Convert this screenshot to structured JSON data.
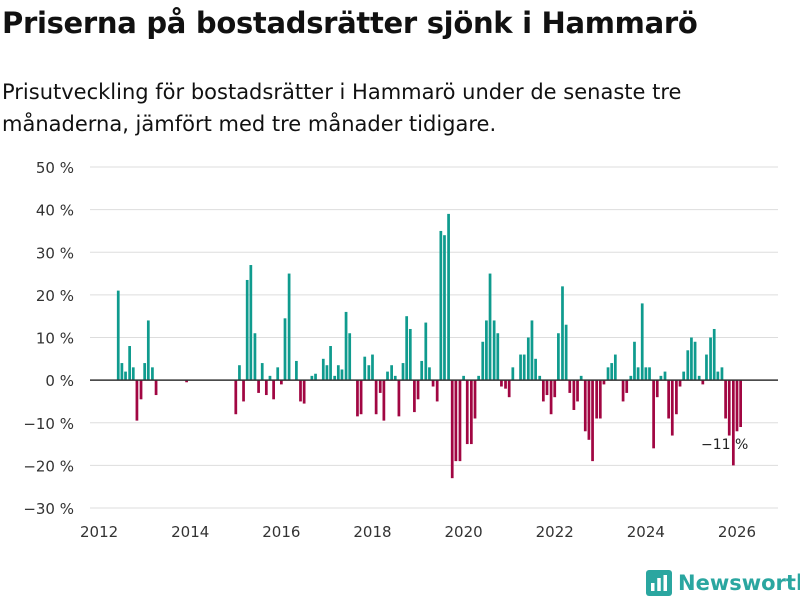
{
  "header": {
    "title": "Priserna på bostadsrätter sjönk i Hammarö",
    "subtitle": "Prisutveckling för bostadsrätter i Hammarö under de senaste tre månaderna, jämfört med tre månader tidigare."
  },
  "brand": {
    "name": "Newsworthy",
    "color": "#2aa6a0",
    "icon": "bar-chart-logo-icon"
  },
  "colors": {
    "positive": "#0f9b8e",
    "negative": "#a10642",
    "grid": "#dddddd",
    "zero_line": "#333333"
  },
  "chart_data": {
    "type": "bar",
    "title": "Priserna på bostadsrätter sjönk i Hammarö",
    "xlabel": "",
    "ylabel": "",
    "ylim": [
      -30,
      50
    ],
    "xlim": [
      2011.8,
      2026.9
    ],
    "yticks": [
      -30,
      -20,
      -10,
      0,
      10,
      20,
      30,
      40,
      50
    ],
    "ytick_labels": [
      "−30 %",
      "−20 %",
      "−10 %",
      "0 %",
      "10 %",
      "20 %",
      "30 %",
      "40 %",
      "50 %"
    ],
    "xticks": [
      2012,
      2014,
      2016,
      2018,
      2020,
      2022,
      2024,
      2026
    ],
    "xtick_labels": [
      "2012",
      "2014",
      "2016",
      "2018",
      "2020",
      "2022",
      "2024",
      "2026"
    ],
    "grid": true,
    "annotation": {
      "text": "−11 %",
      "x": 2026.08,
      "y": -11
    },
    "series": [
      {
        "name": "Prisutveckling",
        "x": [
          2012.42,
          2012.5,
          2012.58,
          2012.67,
          2012.75,
          2012.83,
          2012.92,
          2013.0,
          2013.08,
          2013.17,
          2013.25,
          2013.33,
          2013.92,
          2015.0,
          2015.08,
          2015.17,
          2015.25,
          2015.33,
          2015.42,
          2015.5,
          2015.58,
          2015.67,
          2015.75,
          2015.83,
          2015.92,
          2016.0,
          2016.08,
          2016.17,
          2016.25,
          2016.33,
          2016.42,
          2016.5,
          2016.58,
          2016.67,
          2016.75,
          2016.83,
          2016.92,
          2017.0,
          2017.08,
          2017.17,
          2017.25,
          2017.33,
          2017.42,
          2017.5,
          2017.58,
          2017.67,
          2017.75,
          2017.83,
          2017.92,
          2018.0,
          2018.08,
          2018.17,
          2018.25,
          2018.33,
          2018.42,
          2018.5,
          2018.58,
          2018.67,
          2018.75,
          2018.83,
          2018.92,
          2019.0,
          2019.08,
          2019.17,
          2019.25,
          2019.33,
          2019.42,
          2019.5,
          2019.58,
          2019.67,
          2019.75,
          2019.83,
          2019.92,
          2020.0,
          2020.08,
          2020.17,
          2020.25,
          2020.33,
          2020.42,
          2020.5,
          2020.58,
          2020.67,
          2020.75,
          2020.83,
          2020.92,
          2021.0,
          2021.08,
          2021.17,
          2021.25,
          2021.33,
          2021.42,
          2021.5,
          2021.58,
          2021.67,
          2021.75,
          2021.83,
          2021.92,
          2022.0,
          2022.08,
          2022.17,
          2022.25,
          2022.33,
          2022.42,
          2022.5,
          2022.58,
          2022.67,
          2022.75,
          2022.83,
          2022.92,
          2023.0,
          2023.08,
          2023.17,
          2023.25,
          2023.33,
          2023.42,
          2023.5,
          2023.58,
          2023.67,
          2023.75,
          2023.83,
          2023.92,
          2024.0,
          2024.08,
          2024.17,
          2024.25,
          2024.33,
          2024.42,
          2024.5,
          2024.58,
          2024.67,
          2024.75,
          2024.83,
          2024.92,
          2025.0,
          2025.08,
          2025.17,
          2025.25,
          2025.33,
          2025.42,
          2025.5,
          2025.58,
          2025.67,
          2025.75,
          2025.83,
          2025.92,
          2026.0,
          2026.08
        ],
        "values": [
          21,
          4,
          2,
          8,
          3,
          -9.5,
          -4.5,
          4,
          14,
          3,
          -3.5,
          0,
          -0.5,
          -8,
          3.5,
          -5,
          23.5,
          27,
          11,
          -3,
          4,
          -3.5,
          1,
          -4.5,
          3,
          -1,
          14.5,
          25,
          0,
          4.5,
          -5,
          -5.5,
          0,
          1,
          1.5,
          0,
          5,
          3.5,
          8,
          1,
          3.5,
          2.5,
          16,
          11,
          0,
          -8.5,
          -8,
          5.5,
          3.5,
          6,
          -8,
          -3,
          -9.5,
          2,
          3.5,
          1,
          -8.5,
          4,
          15,
          12,
          -7.5,
          -4.5,
          4.5,
          13.5,
          3,
          -1.5,
          -5,
          35,
          34,
          39,
          -23,
          -19,
          -19,
          1,
          -15,
          -15,
          -9,
          1,
          9,
          14,
          25,
          14,
          11,
          -1.5,
          -2,
          -4,
          3,
          0,
          6,
          6,
          10,
          14,
          5,
          1,
          -5,
          -3.5,
          -8,
          -4,
          11,
          22,
          13,
          -3,
          -7,
          -5,
          1,
          -12,
          -14,
          -19,
          -9,
          -9,
          -1,
          3,
          4,
          6,
          0,
          -5,
          -3,
          1,
          9,
          3,
          18,
          3,
          3,
          -16,
          -4,
          1,
          2,
          -9,
          -13,
          -8,
          -1.5,
          2,
          7,
          10,
          9,
          1,
          -1,
          6,
          10,
          12,
          2,
          3,
          -9,
          -13,
          -20,
          -12,
          -11
        ]
      }
    ]
  }
}
